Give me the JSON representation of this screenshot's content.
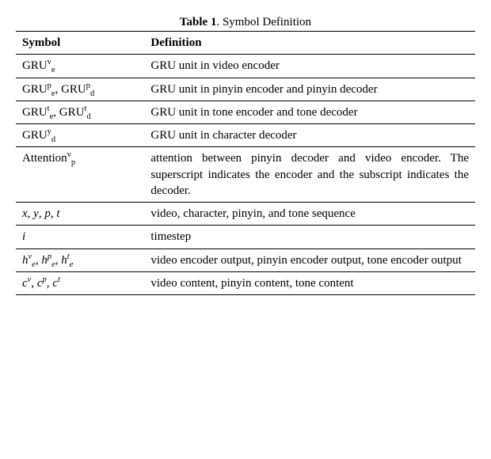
{
  "caption_label": "Table 1",
  "caption_text": ". Symbol Definition",
  "headers": {
    "symbol": "Symbol",
    "definition": "Definition"
  },
  "rows": [
    {
      "symbol_html": "GRU<span class='sup rm'>v</span><span class='sub rm'>e</span>",
      "definition": "GRU unit in video encoder"
    },
    {
      "symbol_html": "GRU<span class='sup rm'>p</span><span class='sub rm'>e</span>, GRU<span class='sup rm'>p</span><span class='sub rm'>d</span>",
      "definition": "GRU unit in pinyin encoder and pinyin decoder"
    },
    {
      "symbol_html": "GRU<span class='sup rm'>t</span><span class='sub rm'>e</span>, GRU<span class='sup rm'>t</span><span class='sub rm'>d</span>",
      "definition": "GRU unit in tone encoder and tone decoder"
    },
    {
      "symbol_html": "GRU<span class='sup rm'>y</span><span class='sub rm'>d</span>",
      "definition": "GRU unit in character decoder"
    },
    {
      "symbol_html": "Attention<span class='sup rm'>v</span><span class='sub rm'>p</span>",
      "definition": "attention between pinyin decoder and video encoder. The superscript indicates the encoder and the subscript indicates the decoder."
    },
    {
      "symbol_html": "<span class='math'>x</span>, <span class='math'>y</span>, <span class='math'>p</span>, <span class='math'>t</span>",
      "definition": "video, character, pinyin, and tone sequence"
    },
    {
      "symbol_html": "<span class='math'>i</span>",
      "definition": "timestep"
    },
    {
      "symbol_html": "<span class='math'>h</span><span class='sup math'>v</span><span class='sub math'>e</span>, <span class='math'>h</span><span class='sup math'>p</span><span class='sub math'>e</span>, <span class='math'>h</span><span class='sup math'>t</span><span class='sub math'>e</span>",
      "definition": "video encoder output, pinyin encoder output, tone encoder output"
    },
    {
      "symbol_html": "<span class='math'>c</span><span class='sup math'>v</span>, <span class='math'>c</span><span class='sup math'>p</span>, <span class='math'>c</span><span class='sup math'>t</span>",
      "definition": "video content, pinyin content, tone content"
    }
  ],
  "style": {
    "font_family": "Times New Roman",
    "font_size_pt": 11,
    "border_color": "#000000",
    "background_color": "#ffffff",
    "text_color": "#000000",
    "col_widths_pct": [
      28,
      72
    ]
  }
}
